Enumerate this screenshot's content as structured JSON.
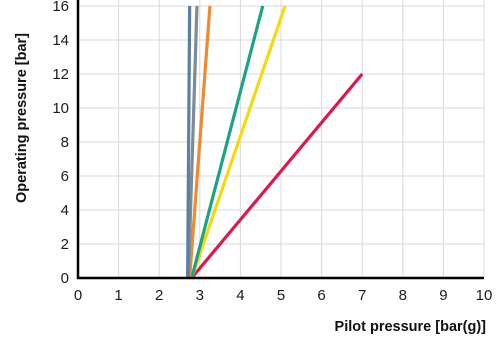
{
  "chart_data": {
    "type": "line",
    "xlabel": "Pilot pressure [bar(g)]",
    "ylabel": "Operating pressure [bar]",
    "xlim": [
      0,
      10
    ],
    "ylim": [
      0,
      16
    ],
    "x_ticks": [
      "0",
      "1",
      "2",
      "3",
      "4",
      "5",
      "6",
      "7",
      "8",
      "9",
      "10"
    ],
    "y_ticks": [
      "0",
      "2",
      "4",
      "6",
      "8",
      "10",
      "12",
      "14",
      "16"
    ],
    "grid": true,
    "series": [
      {
        "color": "#d81b4c",
        "points": [
          [
            2.8,
            0
          ],
          [
            7.0,
            12.0
          ]
        ]
      },
      {
        "color": "#f5d90e",
        "points": [
          [
            2.8,
            0
          ],
          [
            5.1,
            16.0
          ]
        ]
      },
      {
        "color": "#1aa385",
        "points": [
          [
            2.8,
            0
          ],
          [
            4.55,
            16.0
          ]
        ]
      },
      {
        "color": "#f08a2e",
        "points": [
          [
            2.75,
            0
          ],
          [
            3.25,
            16.0
          ]
        ]
      },
      {
        "color": "#7f8a94",
        "points": [
          [
            2.72,
            0
          ],
          [
            2.93,
            16.0
          ]
        ]
      },
      {
        "color": "#5b7fa6",
        "points": [
          [
            2.7,
            0
          ],
          [
            2.75,
            16.0
          ]
        ]
      }
    ]
  }
}
